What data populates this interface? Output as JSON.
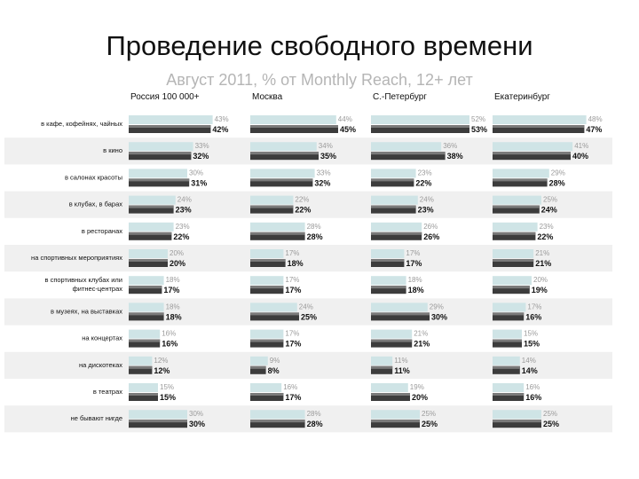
{
  "header": {
    "title": "Проведение свободного времени",
    "subtitle": "Август 2011, % от Monthly Reach, 12+ лет"
  },
  "chart_data": {
    "type": "bar",
    "orientation": "horizontal",
    "panels": [
      "Россия 100 000+",
      "Москва",
      "С.-Петербург",
      "Екатеринбург"
    ],
    "categories": [
      "в кафе, кофейнях, чайных",
      "в кино",
      "в салонах красоты",
      "в клубах, в барах",
      "в ресторанах",
      "на спортивных мероприятиях",
      "в спортивных клубах или фитнес-центрах",
      "в музеях, на выставках",
      "на концертах",
      "на дискотеках",
      "в театрах",
      "не бывают нигде"
    ],
    "series": [
      {
        "values": [
          [
            42,
            45,
            53,
            47
          ],
          [
            32,
            35,
            38,
            40
          ],
          [
            31,
            32,
            22,
            28
          ],
          [
            23,
            22,
            23,
            24
          ],
          [
            22,
            28,
            26,
            22
          ],
          [
            20,
            18,
            17,
            21
          ],
          [
            17,
            17,
            18,
            19
          ],
          [
            18,
            25,
            30,
            16
          ],
          [
            16,
            17,
            21,
            15
          ],
          [
            12,
            8,
            11,
            14
          ],
          [
            15,
            17,
            20,
            16
          ],
          [
            30,
            28,
            25,
            25
          ]
        ]
      },
      {
        "values": [
          [
            43,
            44,
            52,
            48
          ],
          [
            33,
            34,
            36,
            41
          ],
          [
            30,
            33,
            23,
            29
          ],
          [
            24,
            22,
            24,
            25
          ],
          [
            23,
            28,
            26,
            23
          ],
          [
            20,
            17,
            17,
            21
          ],
          [
            18,
            17,
            18,
            20
          ],
          [
            18,
            24,
            29,
            17
          ],
          [
            16,
            17,
            21,
            15
          ],
          [
            12,
            9,
            11,
            14
          ],
          [
            15,
            16,
            19,
            16
          ],
          [
            30,
            28,
            25,
            25
          ]
        ]
      }
    ],
    "value_suffix": "%",
    "xlim": [
      0,
      60
    ],
    "grid": false,
    "colors": {
      "current_bar": "#3c3c3c",
      "previous_bar": "#cfe4e6",
      "row_band": "#f0f0f0"
    }
  }
}
